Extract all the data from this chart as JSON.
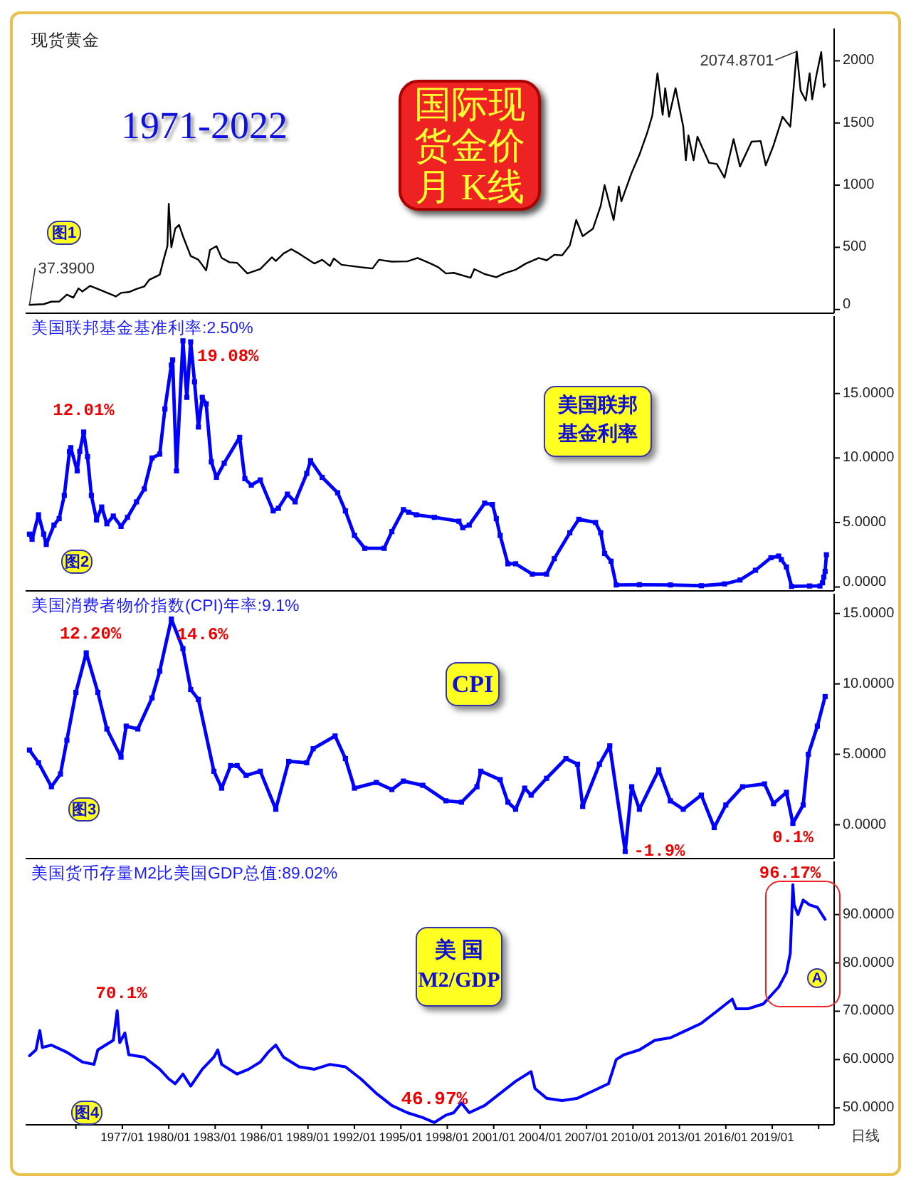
{
  "chart_data": [
    {
      "type": "line",
      "title": "现货黄金",
      "color": "#000000",
      "xlim": [
        "1970-10",
        "2023-01"
      ],
      "ylim": [
        -30,
        2260
      ],
      "yticks": [
        0,
        500,
        1000,
        1500,
        2000
      ],
      "tick_labels": "y",
      "x": [
        "1971-01",
        "1971-06",
        "1971-12",
        "1972-06",
        "1972-12",
        "1973-06",
        "1973-11",
        "1974-03",
        "1974-06",
        "1974-12",
        "1975-06",
        "1975-12",
        "1976-08",
        "1976-12",
        "1977-06",
        "1977-12",
        "1978-06",
        "1978-10",
        "1979-06",
        "1979-09",
        "1979-12",
        "1980-01",
        "1980-03",
        "1980-06",
        "1980-09",
        "1980-12",
        "1981-06",
        "1981-12",
        "1982-06",
        "1982-09",
        "1983-02",
        "1983-06",
        "1983-12",
        "1984-06",
        "1985-02",
        "1985-12",
        "1986-09",
        "1986-12",
        "1987-06",
        "1987-12",
        "1988-06",
        "1988-12",
        "1989-06",
        "1989-12",
        "1990-06",
        "1990-09",
        "1991-03",
        "1992-06",
        "1993-03",
        "1993-08",
        "1994-06",
        "1995-06",
        "1996-02",
        "1996-12",
        "1997-06",
        "1997-12",
        "1998-06",
        "1999-07",
        "1999-10",
        "2000-06",
        "2001-03",
        "2001-09",
        "2002-06",
        "2003-02",
        "2003-12",
        "2004-06",
        "2004-12",
        "2005-06",
        "2005-12",
        "2006-05",
        "2006-10",
        "2007-06",
        "2007-12",
        "2008-03",
        "2008-10",
        "2009-02",
        "2009-04",
        "2009-12",
        "2010-06",
        "2010-12",
        "2011-04",
        "2011-08",
        "2011-12",
        "2012-02",
        "2012-05",
        "2012-10",
        "2013-04",
        "2013-06",
        "2013-08",
        "2013-12",
        "2014-03",
        "2014-12",
        "2015-06",
        "2015-12",
        "2016-07",
        "2016-12",
        "2017-09",
        "2018-04",
        "2018-08",
        "2019-02",
        "2019-09",
        "2020-03",
        "2020-08",
        "2020-11",
        "2021-03",
        "2021-06",
        "2021-08",
        "2021-11",
        "2022-03",
        "2022-05",
        "2022-06"
      ],
      "values": [
        37.39,
        40,
        43,
        63,
        64,
        120,
        95,
        170,
        145,
        190,
        165,
        140,
        105,
        134,
        140,
        165,
        185,
        240,
        280,
        400,
        512,
        850,
        500,
        650,
        680,
        590,
        430,
        400,
        315,
        480,
        510,
        415,
        380,
        375,
        290,
        326,
        420,
        390,
        450,
        485,
        450,
        410,
        370,
        400,
        350,
        410,
        360,
        340,
        330,
        400,
        385,
        387,
        415,
        370,
        340,
        290,
        295,
        255,
        325,
        285,
        260,
        290,
        320,
        370,
        415,
        395,
        440,
        435,
        515,
        720,
        590,
        650,
        835,
        1000,
        720,
        990,
        870,
        1100,
        1245,
        1420,
        1560,
        1900,
        1565,
        1780,
        1550,
        1780,
        1470,
        1200,
        1400,
        1200,
        1390,
        1180,
        1170,
        1060,
        1370,
        1150,
        1350,
        1355,
        1160,
        1320,
        1550,
        1470,
        2074.8701,
        1760,
        1680,
        1900,
        1690,
        1870,
        2070,
        1790,
        1810
      ],
      "annotations": [
        {
          "text": "2074.8701",
          "x": "2020-08",
          "y": 2074.8701
        },
        {
          "text": "37.3900",
          "x": "1971-01",
          "y": 37.39
        },
        "1971-2022",
        "国际现货金价月 K线",
        "图1"
      ]
    },
    {
      "type": "line",
      "title": "美国联邦基金基准利率:2.50%",
      "color": "#0000ff",
      "marker": "square",
      "xlim": [
        "1970-10",
        "2023-01"
      ],
      "ylim": [
        -0.3,
        21
      ],
      "yticks": [
        {
          "value": 0,
          "label": "0.0000"
        },
        {
          "value": 5,
          "label": "5.0000"
        },
        {
          "value": 10,
          "label": "10.0000"
        },
        {
          "value": 15,
          "label": "15.0000"
        }
      ],
      "tick_labels": "y",
      "x": [
        "1971-01",
        "1971-03",
        "1971-08",
        "1971-12",
        "1972-02",
        "1972-08",
        "1972-12",
        "1973-04",
        "1973-08",
        "1973-09",
        "1974-02",
        "1974-04",
        "1974-07",
        "1974-10",
        "1975-01",
        "1975-05",
        "1975-09",
        "1976-01",
        "1976-06",
        "1976-12",
        "1977-05",
        "1977-12",
        "1978-06",
        "1978-12",
        "1979-06",
        "1979-10",
        "1980-03",
        "1980-04",
        "1980-07",
        "1980-12",
        "1981-03",
        "1981-06",
        "1981-09",
        "1981-12",
        "1982-03",
        "1982-06",
        "1982-10",
        "1983-02",
        "1983-08",
        "1984-08",
        "1984-12",
        "1985-05",
        "1985-12",
        "1986-10",
        "1987-02",
        "1987-09",
        "1988-03",
        "1988-12",
        "1989-03",
        "1989-12",
        "1990-12",
        "1991-06",
        "1992-01",
        "1992-09",
        "1993-12",
        "1994-06",
        "1995-03",
        "1995-07",
        "1996-01",
        "1997-03",
        "1998-10",
        "1999-01",
        "1999-06",
        "2000-06",
        "2000-12",
        "2001-03",
        "2001-06",
        "2001-12",
        "2002-06",
        "2003-07",
        "2004-06",
        "2004-12",
        "2005-12",
        "2006-07",
        "2007-08",
        "2007-12",
        "2008-03",
        "2008-08",
        "2008-12",
        "2010-06",
        "2012-06",
        "2014-06",
        "2015-12",
        "2016-12",
        "2017-12",
        "2018-12",
        "2019-06",
        "2019-08",
        "2019-12",
        "2020-04",
        "2021-06",
        "2022-02",
        "2022-04",
        "2022-05",
        "2022-06",
        "2022-07"
      ],
      "values": [
        4.1,
        3.7,
        5.6,
        4.1,
        3.3,
        4.8,
        5.3,
        7.1,
        10.5,
        10.8,
        9.0,
        10.5,
        12.01,
        10.1,
        7.1,
        5.2,
        6.2,
        4.9,
        5.5,
        4.7,
        5.4,
        6.6,
        7.6,
        10.0,
        10.3,
        13.8,
        17.2,
        17.6,
        9.0,
        19.08,
        14.7,
        19.0,
        15.9,
        12.4,
        14.7,
        14.2,
        9.7,
        8.5,
        9.6,
        11.6,
        8.4,
        7.9,
        8.3,
        5.9,
        6.1,
        7.2,
        6.6,
        8.8,
        9.8,
        8.5,
        7.3,
        5.9,
        4.0,
        3.0,
        3.0,
        4.3,
        6.0,
        5.8,
        5.6,
        5.4,
        5.1,
        4.6,
        4.8,
        6.5,
        6.4,
        5.3,
        4.0,
        1.8,
        1.8,
        1.0,
        1.0,
        2.2,
        4.2,
        5.25,
        5.0,
        4.2,
        2.6,
        2.0,
        0.16,
        0.18,
        0.16,
        0.1,
        0.24,
        0.54,
        1.3,
        2.27,
        2.4,
        2.13,
        1.55,
        0.05,
        0.08,
        0.08,
        0.33,
        0.77,
        1.21,
        2.5
      ],
      "annotations": [
        {
          "text": "12.01%",
          "x": "1974-07",
          "y": 12.01
        },
        {
          "text": "19.08%",
          "x": "1980-12",
          "y": 19.08
        },
        "美国联邦基金利率",
        "图2"
      ]
    },
    {
      "type": "line",
      "title": "美国消费者物价指数(CPI)年率:9.1%",
      "color": "#0000ff",
      "marker": "square",
      "xlim": [
        "1970-10",
        "2023-01"
      ],
      "ylim": [
        -2.4,
        16.4
      ],
      "yticks": [
        {
          "value": 0,
          "label": "0.0000"
        },
        {
          "value": 5,
          "label": "5.0000"
        },
        {
          "value": 10,
          "label": "10.0000"
        },
        {
          "value": 15,
          "label": "15.0000"
        }
      ],
      "tick_labels": "y",
      "x": [
        "1971-01",
        "1971-08",
        "1972-06",
        "1973-01",
        "1973-06",
        "1974-01",
        "1974-09",
        "1975-06",
        "1976-01",
        "1976-12",
        "1977-04",
        "1978-01",
        "1978-12",
        "1979-06",
        "1980-03",
        "1980-12",
        "1981-06",
        "1981-12",
        "1982-12",
        "1983-06",
        "1984-01",
        "1984-06",
        "1985-01",
        "1985-12",
        "1986-12",
        "1987-10",
        "1988-12",
        "1989-05",
        "1990-10",
        "1991-06",
        "1992-01",
        "1993-06",
        "1994-06",
        "1995-03",
        "1996-06",
        "1997-12",
        "1998-12",
        "1999-12",
        "2000-03",
        "2001-06",
        "2001-12",
        "2002-06",
        "2003-01",
        "2003-06",
        "2004-06",
        "2005-09",
        "2006-06",
        "2006-10",
        "2007-11",
        "2008-07",
        "2009-07",
        "2009-12",
        "2010-06",
        "2011-09",
        "2012-06",
        "2013-04",
        "2014-06",
        "2015-04",
        "2016-01",
        "2017-02",
        "2018-07",
        "2019-02",
        "2019-12",
        "2020-05",
        "2021-01",
        "2021-05",
        "2021-12",
        "2022-06"
      ],
      "values": [
        5.3,
        4.4,
        2.7,
        3.6,
        6.0,
        9.4,
        12.2,
        9.4,
        6.8,
        4.8,
        7.0,
        6.8,
        9.0,
        10.9,
        14.6,
        12.5,
        9.6,
        8.9,
        3.8,
        2.6,
        4.2,
        4.2,
        3.5,
        3.8,
        1.1,
        4.5,
        4.4,
        5.4,
        6.3,
        4.7,
        2.6,
        3.0,
        2.5,
        3.1,
        2.8,
        1.7,
        1.6,
        2.7,
        3.8,
        3.2,
        1.6,
        1.1,
        2.6,
        2.1,
        3.3,
        4.7,
        4.3,
        1.3,
        4.3,
        5.6,
        -1.9,
        2.7,
        1.1,
        3.9,
        1.7,
        1.1,
        2.1,
        -0.2,
        1.4,
        2.7,
        2.9,
        1.5,
        2.3,
        0.1,
        1.4,
        5.0,
        7.0,
        9.1
      ],
      "annotations": [
        {
          "text": "12.20%",
          "x": "1974-09",
          "y": 12.2
        },
        {
          "text": "14.6%",
          "x": "1980-03",
          "y": 14.6
        },
        {
          "text": "-1.9%",
          "x": "2009-07",
          "y": -1.9
        },
        {
          "text": "0.1%",
          "x": "2020-05",
          "y": 0.1
        },
        "CPI",
        "图3"
      ]
    },
    {
      "type": "line",
      "title": "美国货币存量M2比美国GDP总值:89.02%",
      "color": "#0000ff",
      "xlim": [
        "1970-10",
        "2023-01"
      ],
      "ylim": [
        46.5,
        101
      ],
      "yticks": [
        {
          "value": 50,
          "label": "50.0000"
        },
        {
          "value": 60,
          "label": "60.0000"
        },
        {
          "value": 70,
          "label": "70.0000"
        },
        {
          "value": 80,
          "label": "80.0000"
        },
        {
          "value": 90,
          "label": "90.0000"
        }
      ],
      "xticks": [
        {
          "value": "1974-01",
          "label": null
        },
        {
          "value": "1977-01",
          "label": "1977/01"
        },
        {
          "value": "1980-01",
          "label": "1980/01"
        },
        {
          "value": "1983-01",
          "label": "1983/01"
        },
        {
          "value": "1986-01",
          "label": "1986/01"
        },
        {
          "value": "1989-01",
          "label": "1989/01"
        },
        {
          "value": "1992-01",
          "label": "1992/01"
        },
        {
          "value": "1995-01",
          "label": "1995/01"
        },
        {
          "value": "1998-01",
          "label": "1998/01"
        },
        {
          "value": "2001-01",
          "label": "2001/01"
        },
        {
          "value": "2004-01",
          "label": "2004/01"
        },
        {
          "value": "2007-01",
          "label": "2007/01"
        },
        {
          "value": "2010-01",
          "label": "2010/01"
        },
        {
          "value": "2013-01",
          "label": "2013/01"
        },
        {
          "value": "2016-01",
          "label": "2016/01"
        },
        {
          "value": "2019-01",
          "label": "2019/01"
        },
        {
          "value": "2022-01",
          "label": null
        }
      ],
      "x": [
        "1971-01",
        "1971-06",
        "1971-09",
        "1971-11",
        "1972-06",
        "1973-06",
        "1974-06",
        "1975-03",
        "1975-06",
        "1976-06",
        "1976-09",
        "1976-11",
        "1977-03",
        "1977-06",
        "1978-06",
        "1979-06",
        "1980-01",
        "1980-06",
        "1980-12",
        "1981-06",
        "1982-03",
        "1982-12",
        "1983-03",
        "1983-06",
        "1984-06",
        "1985-03",
        "1985-12",
        "1986-06",
        "1986-12",
        "1987-06",
        "1988-06",
        "1989-06",
        "1990-06",
        "1991-06",
        "1992-06",
        "1993-06",
        "1994-06",
        "1995-06",
        "1996-06",
        "1997-03",
        "1997-12",
        "1998-06",
        "1998-12",
        "1999-06",
        "2000-06",
        "2001-06",
        "2002-06",
        "2003-06",
        "2003-09",
        "2004-06",
        "2005-06",
        "2006-06",
        "2007-06",
        "2008-06",
        "2008-12",
        "2009-06",
        "2010-06",
        "2011-06",
        "2012-06",
        "2013-06",
        "2014-06",
        "2015-06",
        "2016-06",
        "2016-09",
        "2017-06",
        "2018-06",
        "2019-06",
        "2019-12",
        "2020-03",
        "2020-05",
        "2020-06",
        "2020-09",
        "2021-01",
        "2021-06",
        "2021-12",
        "2022-06"
      ],
      "values": [
        60.8,
        62,
        66,
        62.5,
        63,
        61.5,
        59.5,
        59,
        62,
        64,
        70.1,
        63.5,
        65.5,
        61,
        60.5,
        58,
        56,
        55,
        57,
        54.5,
        58,
        60.5,
        62,
        59,
        57,
        58,
        59.5,
        61.5,
        63,
        60.5,
        58.5,
        58,
        59,
        58.5,
        56,
        53,
        50.5,
        49,
        48,
        46.97,
        48.5,
        49,
        51,
        49,
        50.5,
        53,
        55.5,
        57.5,
        54,
        52,
        51.5,
        52,
        53.5,
        55,
        60,
        61,
        62,
        64,
        64.5,
        66,
        67.5,
        70,
        72.5,
        70.5,
        70.5,
        71.5,
        75,
        78,
        82,
        96.17,
        92,
        90,
        93,
        92,
        91.5,
        89.02
      ],
      "annotations": [
        {
          "text": "70.1%",
          "x": "1976-09",
          "y": 70.1
        },
        {
          "text": "46.97%",
          "x": "1997-03",
          "y": 46.97
        },
        {
          "text": "96.17%",
          "x": "2020-05",
          "y": 96.17
        },
        "美 国 M2/GDP",
        "图4",
        "A",
        "日线"
      ]
    }
  ]
}
